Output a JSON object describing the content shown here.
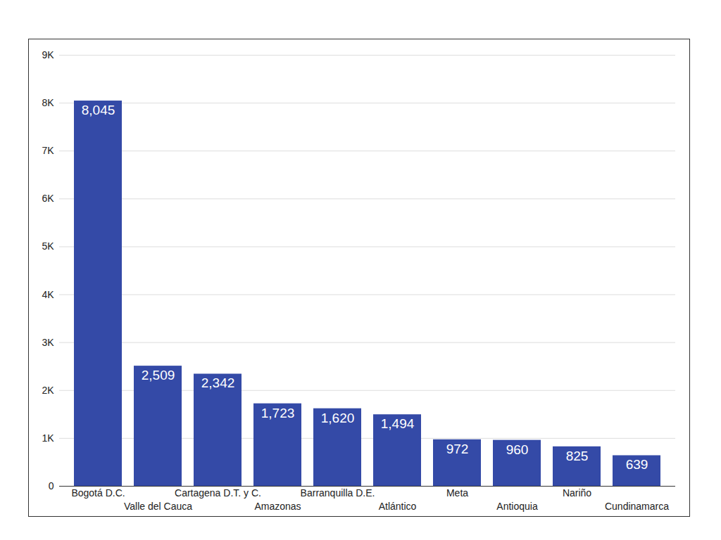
{
  "chart_data": {
    "type": "bar",
    "categories": [
      "Bogotá D.C.",
      "Valle del Cauca",
      "Cartagena D.T. y C.",
      "Amazonas",
      "Barranquilla D.E.",
      "Atlántico",
      "Meta",
      "Antioquia",
      "Nariño",
      "Cundinamarca"
    ],
    "values": [
      8045,
      2509,
      2342,
      1723,
      1620,
      1494,
      972,
      960,
      825,
      639
    ],
    "value_labels": [
      "8,045",
      "2,509",
      "2,342",
      "1,723",
      "1,620",
      "1,494",
      "972",
      "960",
      "825",
      "639"
    ],
    "color": "#344aa7",
    "ylim": [
      0,
      9000
    ],
    "yticks": [
      0,
      {
        "value": 1000,
        "label": "1K"
      },
      {
        "value": 2000,
        "label": "2K"
      },
      {
        "value": 3000,
        "label": "3K"
      },
      {
        "value": 4000,
        "label": "4K"
      },
      {
        "value": 5000,
        "label": "5K"
      },
      {
        "value": 6000,
        "label": "6K"
      },
      {
        "value": 7000,
        "label": "7K"
      },
      {
        "value": 8000,
        "label": "8K"
      },
      {
        "value": 9000,
        "label": "9K"
      }
    ],
    "grid": true,
    "data_labels": true
  }
}
